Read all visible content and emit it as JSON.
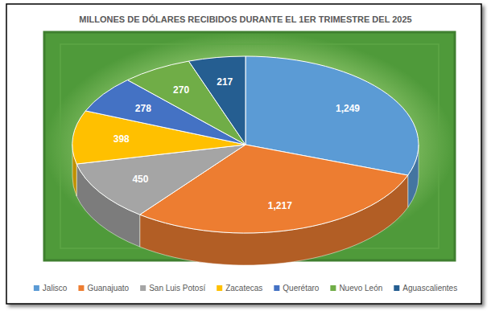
{
  "chart_data": {
    "type": "pie",
    "title": "MILLONES DE DÓLARES RECIBIDOS DURANTE EL 1ER TRIMESTRE DEL 2025",
    "categories": [
      "Jalisco",
      "Guanajuato",
      "San Luis Potosí",
      "Zacatecas",
      "Querétaro",
      "Nuevo León",
      "Aguascalientes"
    ],
    "values": [
      1249,
      1217,
      450,
      398,
      278,
      270,
      217
    ],
    "value_labels": [
      "1,249",
      "1,217",
      "450",
      "398",
      "278",
      "270",
      "217"
    ],
    "colors": [
      "#5b9bd5",
      "#ed7d31",
      "#a5a5a5",
      "#ffc000",
      "#4472c4",
      "#70ad47",
      "#255e91"
    ],
    "data_labels": true,
    "legend": "bottom"
  }
}
